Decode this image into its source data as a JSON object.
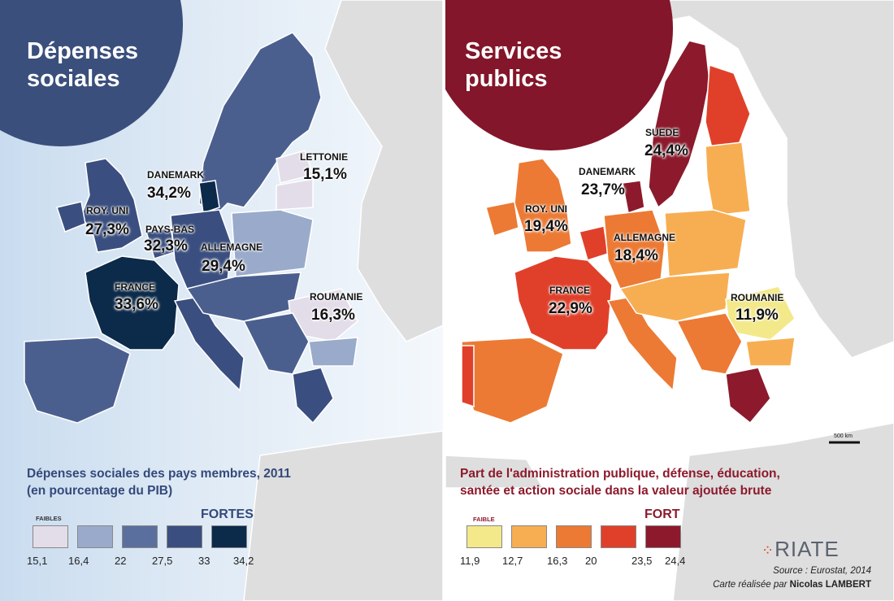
{
  "left": {
    "title": "Dépenses\nsociales",
    "legend_title": "Dépenses sociales des pays membres, 2011\n(en pourcentage du PIB)",
    "legend_low": "FAIBLES",
    "legend_high": "FORTES",
    "breaks": [
      "15,1",
      "16,4",
      "22",
      "27,5",
      "33",
      "34,2"
    ],
    "colors": [
      "#e3dde9",
      "#9aaacb",
      "#5b6f9e",
      "#3a4f80",
      "#0c2a4a"
    ],
    "labels": [
      {
        "name": "LETTONIE",
        "value": "15,1%"
      },
      {
        "name": "DANEMARK",
        "value": "34,2%"
      },
      {
        "name": "ROY. UNI",
        "value": "27,3%"
      },
      {
        "name": "PAYS-BAS",
        "value": "32,3%"
      },
      {
        "name": "ALLEMAGNE",
        "value": "29,4%"
      },
      {
        "name": "FRANCE",
        "value": "33,6%"
      },
      {
        "name": "ROUMANIE",
        "value": "16,3%"
      }
    ]
  },
  "right": {
    "title": "Services\npublics",
    "legend_title": "Part de l'administration publique, défense, éducation,\nsantée et action sociale dans la valeur ajoutée brute",
    "legend_low": "FAIBLE",
    "legend_high": "FORT",
    "breaks": [
      "11,9",
      "12,7",
      "16,3",
      "20",
      "23,5",
      "24,4"
    ],
    "colors": [
      "#f3e98a",
      "#f7ae52",
      "#ec7a34",
      "#e0402a",
      "#8c1a2c"
    ],
    "labels": [
      {
        "name": "SUEDE",
        "value": "24,4%"
      },
      {
        "name": "DANEMARK",
        "value": "23,7%"
      },
      {
        "name": "ROY. UNI",
        "value": "19,4%"
      },
      {
        "name": "ALLEMAGNE",
        "value": "18,4%"
      },
      {
        "name": "FRANCE",
        "value": "22,9%"
      },
      {
        "name": "ROUMANIE",
        "value": "11,9%"
      }
    ]
  },
  "scale_bar": "500 km",
  "logo": "RIATE",
  "source": "Source : Eurostat, 2014",
  "credit_prefix": "Carte réalisée par ",
  "credit_author": "Nicolas LAMBERT"
}
